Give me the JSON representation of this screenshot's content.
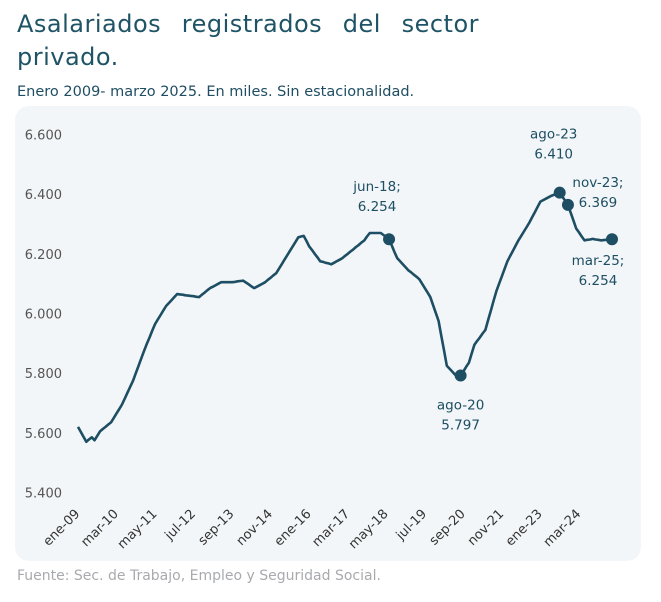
{
  "chart_data": {
    "type": "line",
    "title": "Asalariados registrados del sector privado.",
    "subtitle": "Enero 2009- marzo 2025. En miles. Sin estacionalidad.",
    "source": "Fuente: Sec. de Trabajo, Empleo y Seguridad Social.",
    "categories": [
      "ene-09",
      null,
      null,
      null,
      null,
      null,
      null,
      null,
      null,
      null,
      null,
      null,
      null,
      null,
      "mar-10",
      null,
      null,
      null,
      null,
      null,
      null,
      null,
      null,
      null,
      null,
      null,
      null,
      null,
      "may-11",
      null,
      null,
      null,
      null,
      null,
      null,
      null,
      null,
      null,
      null,
      null,
      null,
      null,
      "jul-12",
      null,
      null,
      null,
      null,
      null,
      null,
      null,
      null,
      null,
      null,
      null,
      null,
      null,
      "sep-13",
      null,
      null,
      null,
      null,
      null,
      null,
      null,
      null,
      null,
      null,
      null,
      null,
      null,
      "nov-14",
      null,
      null,
      null,
      null,
      null,
      null,
      null,
      null,
      null,
      null,
      null,
      null,
      null,
      "ene-16",
      null,
      null,
      null,
      null,
      null,
      null,
      null,
      null,
      null,
      null,
      null,
      null,
      null,
      "mar-17",
      null,
      null,
      null,
      null,
      null,
      null,
      null,
      null,
      null,
      null,
      null,
      null,
      null,
      "may-18",
      null,
      null,
      null,
      null,
      null,
      null,
      null,
      null,
      null,
      null,
      null,
      null,
      null,
      "jul-19",
      null,
      null,
      null,
      null,
      null,
      null,
      null,
      null,
      null,
      null,
      null,
      null,
      null,
      "sep-20",
      null,
      null,
      null,
      null,
      null,
      null,
      null,
      null,
      null,
      null,
      null,
      null,
      null,
      "nov-21",
      null,
      null,
      null,
      null,
      null,
      null,
      null,
      null,
      null,
      null,
      null,
      null,
      null,
      "ene-23",
      null,
      null,
      null,
      null,
      null,
      null,
      null,
      null,
      null,
      null,
      null,
      null,
      null,
      "mar-24",
      null,
      null,
      null,
      null,
      null,
      null,
      null,
      null,
      null,
      null,
      null,
      null
    ],
    "values": [
      5625,
      5608,
      5592,
      5575,
      5583,
      5590,
      5580,
      5595,
      5610,
      5618,
      5625,
      5633,
      5640,
      5655,
      5670,
      5685,
      5700,
      5720,
      5740,
      5760,
      5780,
      5805,
      5830,
      5855,
      5880,
      5903,
      5925,
      5948,
      5970,
      5985,
      6000,
      6015,
      6030,
      6040,
      6050,
      6060,
      6070,
      6069,
      6068,
      6066,
      6065,
      6064,
      6063,
      6061,
      6060,
      6068,
      6075,
      6083,
      6090,
      6095,
      6100,
      6105,
      6110,
      6110,
      6110,
      6110,
      6110,
      6111,
      6113,
      6114,
      6115,
      6109,
      6103,
      6096,
      6090,
      6095,
      6100,
      6105,
      6110,
      6118,
      6125,
      6133,
      6140,
      6155,
      6170,
      6185,
      6200,
      6215,
      6230,
      6245,
      6260,
      6263,
      6265,
      6248,
      6230,
      6218,
      6205,
      6193,
      6180,
      6178,
      6175,
      6173,
      6170,
      6175,
      6180,
      6185,
      6190,
      6198,
      6205,
      6213,
      6220,
      6228,
      6235,
      6243,
      6250,
      6263,
      6275,
      6275,
      6275,
      6275,
      6275,
      6268,
      6261,
      6254,
      6233,
      6211,
      6190,
      6180,
      6170,
      6160,
      6150,
      6143,
      6135,
      6128,
      6120,
      6105,
      6090,
      6075,
      6060,
      6033,
      6007,
      5980,
      5930,
      5880,
      5830,
      5820,
      5810,
      5800,
      5798,
      5797,
      5811,
      5826,
      5840,
      5870,
      5900,
      5913,
      5925,
      5938,
      5950,
      5983,
      6015,
      6048,
      6080,
      6105,
      6130,
      6155,
      6180,
      6198,
      6215,
      6233,
      6250,
      6265,
      6280,
      6295,
      6310,
      6328,
      6345,
      6363,
      6380,
      6385,
      6390,
      6395,
      6400,
      6403,
      6407,
      6410,
      6396,
      6383,
      6369,
      6343,
      6316,
      6290,
      6277,
      6263,
      6250,
      6252,
      6253,
      6255,
      6253,
      6252,
      6250,
      6251,
      6252,
      6253,
      6254
    ],
    "color": "#1d4e63",
    "ylim": [
      5400,
      6600
    ],
    "yticks": [
      {
        "value": 5400,
        "label": "5.400"
      },
      {
        "value": 5600,
        "label": "5.600"
      },
      {
        "value": 5800,
        "label": "5.800"
      },
      {
        "value": 6000,
        "label": "6.000"
      },
      {
        "value": 6200,
        "label": "6.200"
      },
      {
        "value": 6400,
        "label": "6.400"
      },
      {
        "value": 6600,
        "label": "6.600"
      }
    ],
    "grid": false,
    "annotations": [
      {
        "index": 113,
        "text": "jun-18;",
        "value_label": "6.254"
      },
      {
        "index": 139,
        "text": "ago-20",
        "value_label": "5.797"
      },
      {
        "index": 175,
        "text": "ago-23",
        "value_label": "6.410"
      },
      {
        "index": 178,
        "text": "nov-23;",
        "value_label": "6.369"
      },
      {
        "index": 194,
        "text": "mar-25;",
        "value_label": "6.254"
      }
    ]
  }
}
